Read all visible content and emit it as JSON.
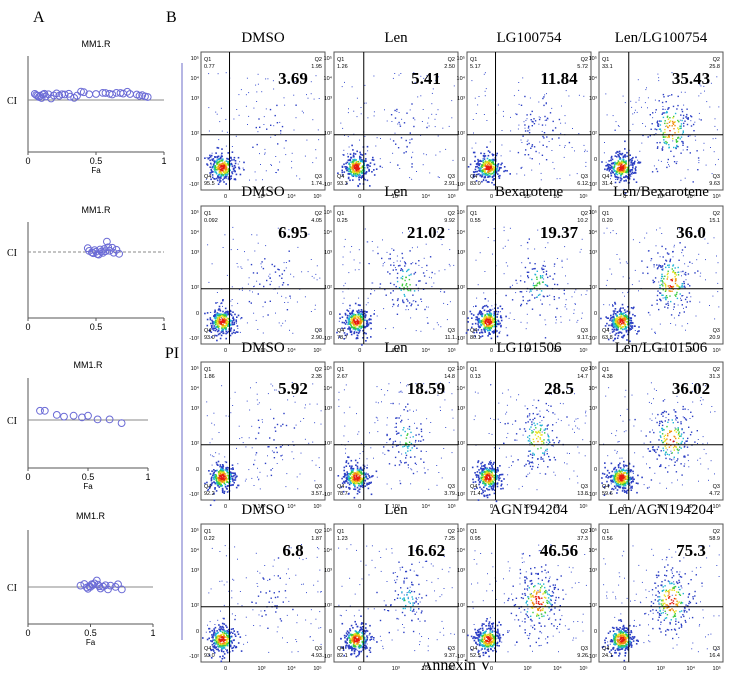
{
  "panel_labels": {
    "a": "A",
    "b": "B"
  },
  "ci_plots": [
    {
      "title": "MM1.R",
      "ylabel": "CI",
      "xlabel": "Fa",
      "xticks": [
        "0",
        "0.5",
        "1"
      ],
      "ref_line": "solid",
      "points": [
        [
          0.05,
          0.86
        ],
        [
          0.06,
          0.74
        ],
        [
          0.07,
          0.65
        ],
        [
          0.08,
          0.52
        ],
        [
          0.09,
          0.66
        ],
        [
          0.1,
          0.4
        ],
        [
          0.11,
          0.8
        ],
        [
          0.12,
          0.88
        ],
        [
          0.13,
          0.58
        ],
        [
          0.15,
          0.82
        ],
        [
          0.17,
          0.35
        ],
        [
          0.19,
          0.68
        ],
        [
          0.21,
          0.92
        ],
        [
          0.23,
          0.66
        ],
        [
          0.25,
          0.82
        ],
        [
          0.27,
          0.8
        ],
        [
          0.3,
          0.88
        ],
        [
          0.31,
          0.55
        ],
        [
          0.34,
          0.42
        ],
        [
          0.36,
          0.66
        ],
        [
          0.39,
          1.12
        ],
        [
          0.41,
          1.05
        ],
        [
          0.45,
          0.82
        ],
        [
          0.5,
          0.85
        ],
        [
          0.55,
          0.98
        ],
        [
          0.57,
          0.96
        ],
        [
          0.6,
          0.88
        ],
        [
          0.62,
          0.8
        ],
        [
          0.65,
          0.98
        ],
        [
          0.68,
          0.96
        ],
        [
          0.7,
          0.9
        ],
        [
          0.73,
          1.1
        ],
        [
          0.75,
          0.85
        ],
        [
          0.8,
          0.8
        ],
        [
          0.82,
          0.65
        ],
        [
          0.84,
          0.72
        ],
        [
          0.86,
          0.58
        ],
        [
          0.88,
          0.52
        ]
      ]
    },
    {
      "title": "MM1.R",
      "ylabel": "CI",
      "xlabel": "",
      "xticks": [
        "0",
        "0.5",
        "1"
      ],
      "ref_line": "dashed",
      "points": [
        [
          0.44,
          0.52
        ],
        [
          0.45,
          0.28
        ],
        [
          0.47,
          0.15
        ],
        [
          0.48,
          0.08
        ],
        [
          0.49,
          0.35
        ],
        [
          0.5,
          0.2
        ],
        [
          0.51,
          0.0
        ],
        [
          0.52,
          -0.05
        ],
        [
          0.53,
          0.4
        ],
        [
          0.54,
          0.22
        ],
        [
          0.55,
          0.1
        ],
        [
          0.56,
          0.45
        ],
        [
          0.57,
          0.25
        ],
        [
          0.58,
          1.1
        ],
        [
          0.59,
          0.6
        ],
        [
          0.6,
          0.3
        ],
        [
          0.62,
          0.55
        ],
        [
          0.63,
          0.12
        ],
        [
          0.65,
          0.38
        ],
        [
          0.67,
          0.02
        ]
      ]
    },
    {
      "title": "MM1.R",
      "ylabel": "CI",
      "xlabel": "Fa",
      "xticks": [
        "0",
        "0.5",
        "1"
      ],
      "ref_line": "solid",
      "points": [
        [
          0.1,
          1.3
        ],
        [
          0.14,
          1.3
        ],
        [
          0.24,
          0.8
        ],
        [
          0.3,
          0.6
        ],
        [
          0.38,
          0.7
        ],
        [
          0.45,
          0.5
        ],
        [
          0.5,
          0.7
        ],
        [
          0.58,
          0.25
        ],
        [
          0.68,
          0.25
        ],
        [
          0.78,
          -0.2
        ]
      ]
    },
    {
      "title": "MM1.R",
      "ylabel": "CI",
      "xlabel": "Fa",
      "xticks": [
        "0",
        "0.5",
        "1"
      ],
      "ref_line": "solid",
      "points": [
        [
          0.42,
          0.4
        ],
        [
          0.45,
          0.65
        ],
        [
          0.47,
          0.1
        ],
        [
          0.48,
          -0.1
        ],
        [
          0.49,
          0.3
        ],
        [
          0.5,
          0.2
        ],
        [
          0.51,
          0.6
        ],
        [
          0.52,
          0.5
        ],
        [
          0.53,
          0.75
        ],
        [
          0.55,
          1.2
        ],
        [
          0.56,
          0.55
        ],
        [
          0.57,
          0.3
        ],
        [
          0.58,
          -0.05
        ],
        [
          0.6,
          0.25
        ],
        [
          0.62,
          0.45
        ],
        [
          0.64,
          -0.2
        ],
        [
          0.66,
          0.4
        ],
        [
          0.7,
          0.2
        ],
        [
          0.72,
          0.6
        ],
        [
          0.75,
          -0.2
        ]
      ]
    }
  ],
  "flow_rows": [
    [
      {
        "title": "DMSO",
        "value": "3.69",
        "q1": "Q1\n0.77",
        "q2": "Q2\n1.95",
        "q3": "Q3\n1.74",
        "q4": "Q4\n95.5"
      },
      {
        "title": "Len",
        "value": "5.41",
        "q1": "Q1\n1.26",
        "q2": "Q2\n2.50",
        "q3": "Q3\n2.91",
        "q4": "Q4\n93.3"
      },
      {
        "title": "LG100754",
        "value": "11.84",
        "q1": "Q1\n5.17",
        "q2": "Q2\n5.72",
        "q3": "Q3\n6.12",
        "q4": "Q4\n83.0"
      },
      {
        "title": "Len/LG100754",
        "value": "35.43",
        "q1": "Q1\n33.1",
        "q2": "Q2\n25.8",
        "q3": "Q3\n9.63",
        "q4": "Q4\n31.4"
      }
    ],
    [
      {
        "title": "DMSO",
        "value": "6.95",
        "q1": "Q1\n0.092",
        "q2": "Q2\n4.05",
        "q3": "Q3\n2.90",
        "q4": "Q4\n93.0"
      },
      {
        "title": "Len",
        "value": "21.02",
        "q1": "Q1\n0.25",
        "q2": "Q2\n9.92",
        "q3": "Q3\n11.1",
        "q4": "Q4\n78.7"
      },
      {
        "title": "Bexarotene",
        "value": "19.37",
        "q1": "Q1\n0.55",
        "q2": "Q2\n10.2",
        "q3": "Q3\n9.17",
        "q4": "Q4\n80.1"
      },
      {
        "title": "Len/Bexarotene",
        "value": "36.0",
        "q1": "Q1\n0.20",
        "q2": "Q2\n15.1",
        "q3": "Q3\n20.9",
        "q4": "Q4\n63.8"
      }
    ],
    [
      {
        "title": "DMSO",
        "value": "5.92",
        "q1": "Q1\n1.86",
        "q2": "Q2\n2.35",
        "q3": "Q3\n3.57",
        "q4": "Q4\n92.2"
      },
      {
        "title": "Len",
        "value": "18.59",
        "q1": "Q1\n2.67",
        "q2": "Q2\n14.8",
        "q3": "Q3\n3.79",
        "q4": "Q4\n78.7"
      },
      {
        "title": "LG101506",
        "value": "28.5",
        "q1": "Q1\n0.13",
        "q2": "Q2\n14.7",
        "q3": "Q3\n13.8",
        "q4": "Q4\n71.4"
      },
      {
        "title": "Len/LG101506",
        "value": "36.02",
        "q1": "Q1\n4.38",
        "q2": "Q2\n31.3",
        "q3": "Q3\n4.72",
        "q4": "Q4\n59.6"
      }
    ],
    [
      {
        "title": "DMSO",
        "value": "6.8",
        "q1": "Q1\n0.22",
        "q2": "Q2\n1.87",
        "q3": "Q3\n4.93",
        "q4": "Q4\n93.0"
      },
      {
        "title": "Len",
        "value": "16.62",
        "q1": "Q1\n1.23",
        "q2": "Q2\n7.25",
        "q3": "Q3\n9.37",
        "q4": "Q4\n82.1"
      },
      {
        "title": "AGN194204",
        "value": "46.56",
        "q1": "Q1\n0.95",
        "q2": "Q2\n37.3",
        "q3": "Q3\n9.26",
        "q4": "Q4\n52.5"
      },
      {
        "title": "Len/AGN194204",
        "value": "75.3",
        "q1": "Q1\n0.56",
        "q2": "Q2\n58.9",
        "q3": "Q3\n16.4",
        "q4": "Q4\n24.1"
      }
    ]
  ],
  "flow_axes": {
    "y_label": "PI",
    "x_label": "Annexin V",
    "xtick_labels": [
      "0",
      "10³",
      "10⁴",
      "10⁵"
    ],
    "ytick_labels": [
      "-10²",
      "0",
      "10²",
      "10³",
      "10⁴",
      "10⁵"
    ]
  }
}
